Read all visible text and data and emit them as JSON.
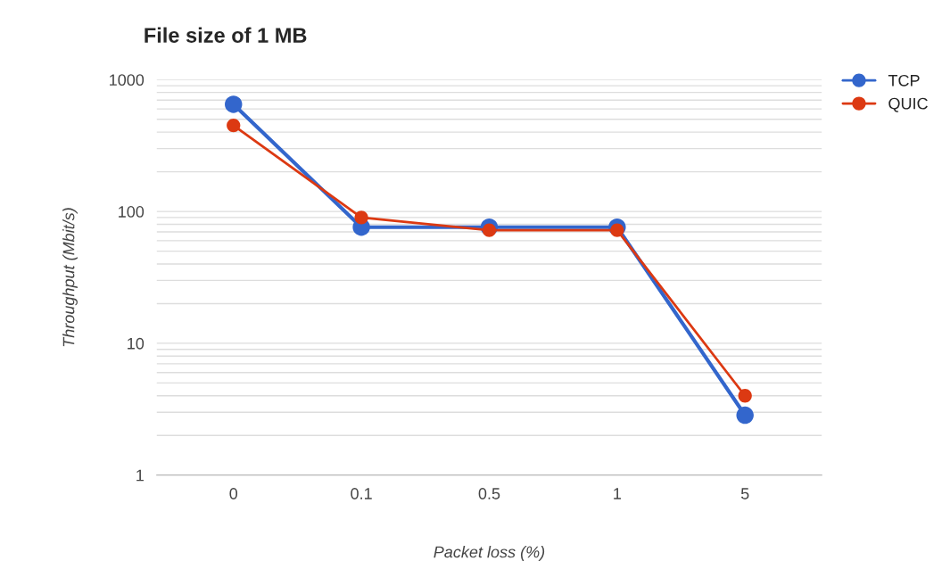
{
  "chart_data": {
    "type": "line",
    "title": "File size of 1 MB",
    "xlabel": "Packet loss (%)",
    "ylabel": "Throughput (Mbit/s)",
    "categories": [
      "0",
      "0.1",
      "0.5",
      "1",
      "5"
    ],
    "series": [
      {
        "name": "TCP",
        "color": "#3366cc",
        "values": [
          650,
          76,
          76,
          76,
          2.85
        ]
      },
      {
        "name": "QUIC",
        "color": "#dc3912",
        "values": [
          450,
          90,
          72,
          72,
          4.0
        ]
      }
    ],
    "log": "y",
    "ylim": [
      1,
      1000
    ],
    "yticks": [
      1,
      {
        "value": 2,
        "label": null
      },
      {
        "value": 3,
        "label": null
      },
      {
        "value": 4,
        "label": null
      },
      {
        "value": 5,
        "label": null
      },
      {
        "value": 6,
        "label": null
      },
      {
        "value": 7,
        "label": null
      },
      {
        "value": 8,
        "label": null
      },
      {
        "value": 9,
        "label": null
      },
      10,
      {
        "value": 20,
        "label": null
      },
      {
        "value": 30,
        "label": null
      },
      {
        "value": 40,
        "label": null
      },
      {
        "value": 50,
        "label": null
      },
      {
        "value": 60,
        "label": null
      },
      {
        "value": 70,
        "label": null
      },
      {
        "value": 80,
        "label": null
      },
      {
        "value": 90,
        "label": null
      },
      100,
      {
        "value": 200,
        "label": null
      },
      {
        "value": 300,
        "label": null
      },
      {
        "value": 400,
        "label": null
      },
      {
        "value": 500,
        "label": null
      },
      {
        "value": 600,
        "label": null
      },
      {
        "value": 700,
        "label": null
      },
      {
        "value": 800,
        "label": null
      },
      {
        "value": 900,
        "label": null
      },
      1000
    ],
    "grid": "y",
    "legend": "top right",
    "marker": "circle",
    "line_style": "solid"
  }
}
